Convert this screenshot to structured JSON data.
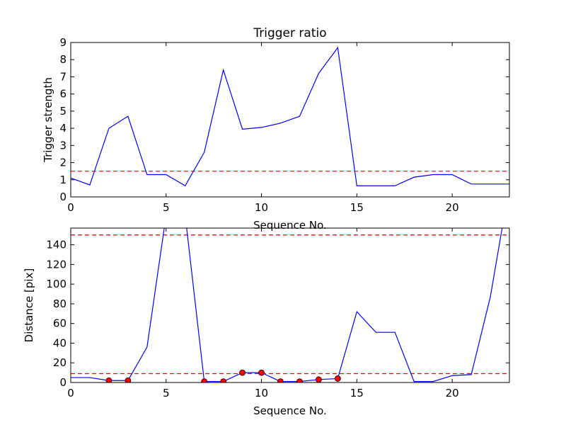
{
  "chart_data": [
    {
      "type": "line",
      "title": "Trigger ratio",
      "xlabel": "Sequence No.",
      "ylabel": "Trigger strength",
      "xlim": [
        0,
        23
      ],
      "ylim": [
        0,
        9
      ],
      "xticks": [
        0,
        5,
        10,
        15,
        20
      ],
      "yticks": [
        0,
        1,
        2,
        3,
        4,
        5,
        6,
        7,
        8,
        9
      ],
      "grid": false,
      "x": [
        0,
        1,
        2,
        3,
        4,
        5,
        6,
        7,
        8,
        9,
        10,
        11,
        12,
        13,
        14,
        15,
        16,
        17,
        18,
        19,
        20,
        21,
        22,
        23
      ],
      "series": [
        {
          "values": [
            1.1,
            0.7,
            4.0,
            4.7,
            1.3,
            1.3,
            0.65,
            2.6,
            7.4,
            3.95,
            4.05,
            4.3,
            4.7,
            7.2,
            8.7,
            0.65,
            0.65,
            0.65,
            1.15,
            1.3,
            1.3,
            0.75,
            0.75,
            0.75
          ],
          "color": "#0000ff"
        }
      ],
      "hlines": [
        {
          "y": 1.5,
          "color": "#ff0000",
          "style": "dashed"
        }
      ]
    },
    {
      "type": "line",
      "title": "",
      "xlabel": "Sequence No.",
      "ylabel": "Distance [pix]",
      "xlim": [
        0,
        23
      ],
      "ylim": [
        0,
        157
      ],
      "xticks": [
        0,
        5,
        10,
        15,
        20
      ],
      "yticks": [
        0,
        20,
        40,
        60,
        80,
        100,
        120,
        140
      ],
      "grid": false,
      "x": [
        0,
        1,
        2,
        3,
        4,
        5,
        6,
        7,
        8,
        9,
        10,
        11,
        12,
        13,
        14,
        15,
        16,
        17,
        18,
        19,
        20,
        21,
        22,
        23
      ],
      "series": [
        {
          "values": [
            5,
            5,
            2,
            2,
            36,
            170,
            170,
            1,
            1,
            10,
            10,
            1,
            1,
            3,
            4,
            72,
            51,
            51,
            1,
            1,
            7,
            8,
            87,
            200
          ],
          "color": "#0000ff"
        }
      ],
      "markers": {
        "x": [
          2,
          3,
          7,
          8,
          9,
          10,
          11,
          12,
          13,
          14
        ],
        "y": [
          2,
          2,
          1,
          1,
          10,
          10,
          1,
          1,
          3,
          4
        ],
        "color": "#ff0000"
      },
      "hlines": [
        {
          "y": 150,
          "color": "#ff0000",
          "style": "dashed"
        },
        {
          "y": 9,
          "color": "#ff0000",
          "style": "dashed"
        }
      ]
    }
  ]
}
